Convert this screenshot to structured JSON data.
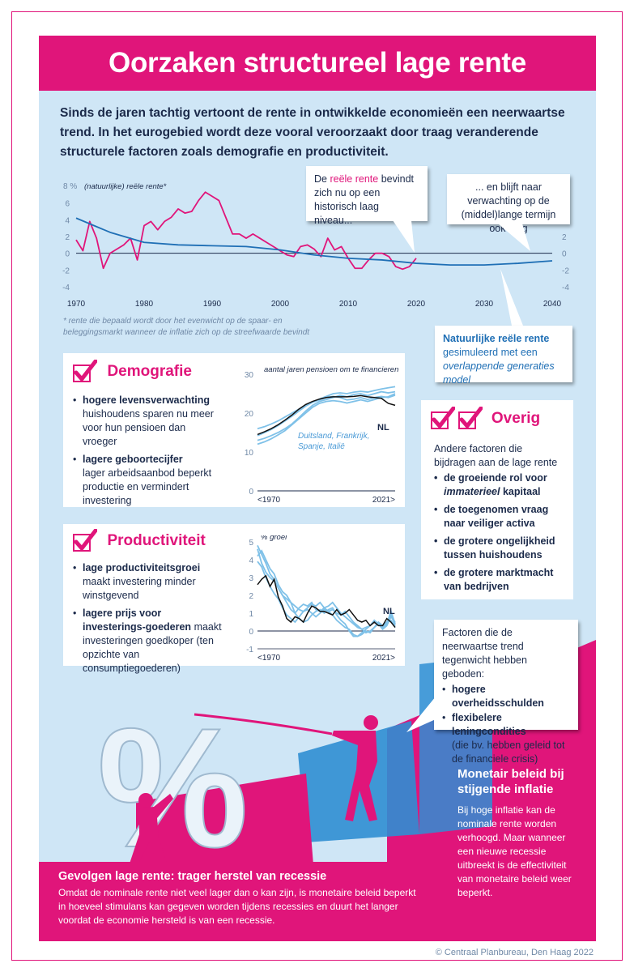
{
  "title": "Oorzaken structureel lage rente",
  "intro": "Sinds de jaren tachtig vertoont de rente in ontwikkelde economieën een neerwaartse trend.  In het eurogebied wordt deze vooral veroorzaakt door traag veranderende structurele factoren zoals demografie en productiviteit.",
  "colors": {
    "pink": "#e0157a",
    "navy": "#1b2a4a",
    "blue": "#1f6fb5",
    "lightblue": "#7fc1e8",
    "panel": "#cfe6f6"
  },
  "main_chart": {
    "unit_label": "8 %",
    "series_label": "(natuurlijke) reële rente*",
    "footnote": "* rente die bepaald wordt door het evenwicht op de spaar- en beleggingsmarkt wanneer de inflatie zich op de streefwaarde bevindt",
    "callout_real": {
      "pre": "De ",
      "highlight": "reële rente",
      "post": " bevindt zich nu op een historisch laag niveau..."
    },
    "callout_future": "... en blijft naar verwachting op de (middel)lange termijn ook laag",
    "callout_natural": {
      "title": "Natuurlijke reële rente",
      "line2": "gesimuleerd met een",
      "line3": "overlappende generaties model"
    }
  },
  "chart_data": [
    {
      "type": "line",
      "title": "(natuurlijke) reële rente*",
      "xlabel": "",
      "ylabel": "%",
      "xlim": [
        1970,
        2040
      ],
      "ylim": [
        -4,
        8
      ],
      "x_ticks": [
        1970,
        1980,
        1990,
        2000,
        2010,
        2020,
        2030,
        2040
      ],
      "y_ticks_left": [
        "8 %",
        "6",
        "4",
        "2",
        "0",
        "-2",
        "-4"
      ],
      "y_ticks_right": [
        "2",
        "0",
        "-2",
        "-4"
      ],
      "series": [
        {
          "name": "reële rente",
          "color": "#e0157a",
          "x": [
            1970,
            1971,
            1972,
            1973,
            1974,
            1975,
            1976,
            1977,
            1978,
            1979,
            1980,
            1981,
            1982,
            1983,
            1984,
            1985,
            1986,
            1987,
            1988,
            1989,
            1990,
            1991,
            1992,
            1993,
            1994,
            1995,
            1996,
            1997,
            1998,
            1999,
            2000,
            2001,
            2002,
            2003,
            2004,
            2005,
            2006,
            2007,
            2008,
            2009,
            2010,
            2011,
            2012,
            2013,
            2014,
            2015,
            2016,
            2017,
            2018,
            2019,
            2020
          ],
          "values": [
            1.6,
            0.3,
            3.8,
            1.8,
            -1.8,
            0.0,
            0.5,
            1.0,
            1.8,
            -0.8,
            3.3,
            3.8,
            2.8,
            3.8,
            4.3,
            5.3,
            4.8,
            5.0,
            6.3,
            7.3,
            6.8,
            6.3,
            4.3,
            2.3,
            2.3,
            1.8,
            2.3,
            1.8,
            1.3,
            0.8,
            0.3,
            -0.2,
            -0.4,
            0.8,
            1.0,
            0.5,
            -0.4,
            1.8,
            0.4,
            0.8,
            -0.6,
            -1.8,
            -1.8,
            -0.8,
            0.0,
            0.0,
            -0.4,
            -1.6,
            -1.9,
            -1.6,
            -0.6
          ]
        },
        {
          "name": "Natuurlijke reële rente",
          "color": "#1f6fb5",
          "x": [
            1970,
            1975,
            1980,
            1985,
            1990,
            1995,
            2000,
            2005,
            2010,
            2015,
            2020,
            2025,
            2030,
            2035,
            2040
          ],
          "values": [
            4.2,
            2.5,
            1.3,
            1.0,
            0.9,
            0.8,
            0.4,
            -0.2,
            -0.6,
            -0.8,
            -1.2,
            -1.4,
            -1.4,
            -1.2,
            -0.9
          ]
        }
      ]
    },
    {
      "type": "line",
      "title": "aantal jaren pensioen om te financieren",
      "ylim": [
        0,
        30
      ],
      "y_ticks": [
        "30",
        "20",
        "10",
        "0"
      ],
      "x_tick_labels": [
        "<1970",
        "2021>"
      ],
      "annotation": "NL",
      "legend_text": [
        "Duitsland, Frankrijk,",
        "Spanje, Italië"
      ],
      "series": [
        {
          "name": "NL",
          "color": "#111111",
          "values": [
            14.5,
            15.2,
            16.0,
            17.0,
            18.2,
            19.5,
            21.0,
            22.2,
            23.0,
            23.6,
            24.0,
            24.2,
            24.2,
            24.2,
            24.3,
            24.5,
            24.2,
            24.0,
            23.8,
            22.5,
            22.0
          ]
        },
        {
          "name": "Duitsland",
          "color": "#7fc1e8",
          "values": [
            13.0,
            13.5,
            14.2,
            15.0,
            16.0,
            17.2,
            18.8,
            20.5,
            22.0,
            23.0,
            23.5,
            24.0,
            24.6,
            24.2,
            24.8,
            25.0,
            24.5,
            25.0,
            25.5,
            25.2,
            25.5
          ]
        },
        {
          "name": "Frankrijk",
          "color": "#7fc1e8",
          "values": [
            16.0,
            16.5,
            17.2,
            18.0,
            19.0,
            20.0,
            21.0,
            22.0,
            22.8,
            23.6,
            24.3,
            25.0,
            25.2,
            25.0,
            25.4,
            25.6,
            25.4,
            25.8,
            26.2,
            26.5,
            26.8
          ]
        },
        {
          "name": "Spanje",
          "color": "#7fc1e8",
          "values": [
            14.2,
            15.0,
            15.8,
            16.8,
            18.0,
            19.2,
            20.5,
            21.8,
            22.8,
            23.4,
            24.0,
            24.3,
            24.0,
            23.4,
            23.6,
            24.0,
            23.5,
            24.0,
            24.3,
            24.0,
            24.6
          ]
        },
        {
          "name": "Italië",
          "color": "#7fc1e8",
          "values": [
            12.0,
            12.6,
            13.4,
            14.4,
            15.5,
            17.0,
            18.5,
            20.0,
            21.5,
            22.5,
            23.0,
            23.2,
            23.0,
            22.6,
            23.0,
            23.4,
            23.0,
            23.5,
            24.0,
            24.2,
            25.0
          ]
        }
      ]
    },
    {
      "type": "line",
      "title": "% groei",
      "ylim": [
        -1,
        5
      ],
      "y_ticks": [
        "5",
        "4",
        "3",
        "2",
        "1",
        "0",
        "-1"
      ],
      "x_tick_labels": [
        "<1970",
        "2021>"
      ],
      "annotation": "NL",
      "series": [
        {
          "name": "NL",
          "color": "#111111",
          "values": [
            2.6,
            2.9,
            3.1,
            2.5,
            2.9,
            1.9,
            1.4,
            0.7,
            0.5,
            0.8,
            0.7,
            0.5,
            1.0,
            1.4,
            1.3,
            1.1,
            1.1,
            1.0,
            0.9,
            1.2,
            0.9,
            1.0,
            1.2,
            0.9,
            0.6,
            0.5,
            0.6,
            0.3,
            0.5,
            0.3,
            0.3,
            0.7,
            0.5,
            0.2
          ]
        },
        {
          "name": "Duitsland",
          "color": "#7fc1e8",
          "values": [
            4.6,
            3.8,
            3.3,
            3.0,
            2.8,
            2.4,
            2.0,
            1.8,
            1.6,
            1.4,
            1.2,
            1.1,
            1.3,
            1.5,
            1.4,
            1.6,
            1.3,
            1.1,
            1.2,
            1.0,
            0.9,
            1.1,
            0.8,
            0.5,
            0.3,
            0.1,
            0.2,
            0.3,
            0.5,
            0.4,
            0.1,
            0.3,
            0.8,
            0.5
          ]
        },
        {
          "name": "Frankrijk",
          "color": "#7fc1e8",
          "values": [
            4.8,
            4.3,
            3.8,
            3.2,
            2.9,
            2.4,
            2.0,
            1.6,
            1.2,
            1.0,
            1.3,
            1.5,
            1.4,
            1.6,
            1.2,
            1.1,
            1.3,
            1.4,
            1.6,
            1.3,
            1.0,
            0.8,
            0.6,
            0.4,
            0.2,
            0.1,
            -0.1,
            0.0,
            0.2,
            0.4,
            0.2,
            0.5,
            0.9,
            0.3
          ]
        },
        {
          "name": "Spanje",
          "color": "#7fc1e8",
          "values": [
            3.9,
            3.6,
            3.0,
            2.5,
            2.1,
            1.8,
            1.3,
            0.9,
            0.7,
            0.5,
            0.8,
            1.1,
            1.2,
            1.0,
            0.8,
            1.0,
            1.2,
            1.1,
            0.9,
            0.6,
            0.4,
            0.2,
            0.1,
            -0.2,
            -0.3,
            -0.1,
            0.1,
            0.3,
            0.6,
            0.4,
            0.2,
            0.4,
            1.1,
            0.4
          ]
        },
        {
          "name": "Italië",
          "color": "#7fc1e8",
          "values": [
            4.2,
            4.5,
            4.0,
            3.5,
            3.2,
            2.6,
            2.2,
            2.0,
            1.6,
            1.0,
            0.7,
            0.5,
            0.6,
            0.9,
            1.1,
            1.2,
            1.0,
            1.2,
            1.3,
            0.9,
            0.6,
            0.4,
            0.0,
            -0.3,
            -0.3,
            -0.2,
            0.0,
            -0.1,
            0.2,
            0.5,
            0.3,
            0.5,
            0.6,
            0.2
          ]
        }
      ]
    }
  ],
  "demografie": {
    "heading": "Demografie",
    "items": [
      {
        "bold": "hogere levensverwachting",
        "rest": "huishoudens sparen nu meer voor hun pensioen dan vroeger"
      },
      {
        "bold": "lagere geboortecijfer",
        "rest": "lager arbeidsaanbod beperkt productie en vermindert investering"
      }
    ]
  },
  "productiviteit": {
    "heading": "Productiviteit",
    "items": [
      {
        "bold": "lage productiviteitsgroei",
        "rest": "maakt investering minder winstgevend"
      },
      {
        "bold": "lagere prijs voor investerings-goederen",
        "rest": "maakt investeringen goedkoper (ten opzichte van consumptiegoederen)"
      }
    ]
  },
  "overig": {
    "heading": "Overig",
    "intro": "Andere factoren die bijdragen aan de lage rente",
    "items": [
      {
        "pre": "de groeiende rol voor ",
        "ital": "immaterieel",
        "post": " kapitaal"
      },
      {
        "pre": "de toegenomen vraag naar veiliger activa",
        "ital": "",
        "post": ""
      },
      {
        "pre": "de grotere ongelijkheid tussen huishoudens",
        "ital": "",
        "post": ""
      },
      {
        "pre": "de grotere marktmacht van bedrijven",
        "ital": "",
        "post": ""
      }
    ]
  },
  "counter": {
    "intro": "Factoren die de neerwaartse trend tegenwicht hebben geboden:",
    "items": [
      {
        "bold": "hogere overheidsschulden",
        "rest": ""
      },
      {
        "bold": "flexibelere leningcondities",
        "rest": "(die bv. hebben geleid tot de financiele crisis)"
      }
    ]
  },
  "illustration": {
    "symbol": "%"
  },
  "monetair": {
    "title": "Monetair beleid bij stijgende inflatie",
    "text": "Bij hoge inflatie kan de nominale rente worden verhoogd. Maar wanneer een nieuwe recessie uitbreekt is de effectiviteit van monetaire beleid weer beperkt."
  },
  "gevolgen": {
    "title": "Gevolgen lage rente: trager herstel van recessie",
    "text": "Omdat de nominale rente niet veel lager dan o kan zijn, is monetaire beleid beperkt in hoeveel stimulans kan gegeven worden tijdens recessies en duurt het langer voordat de economie hersteld is van een recessie."
  },
  "copyright": "© Centraal Planbureau, Den Haag 2022"
}
